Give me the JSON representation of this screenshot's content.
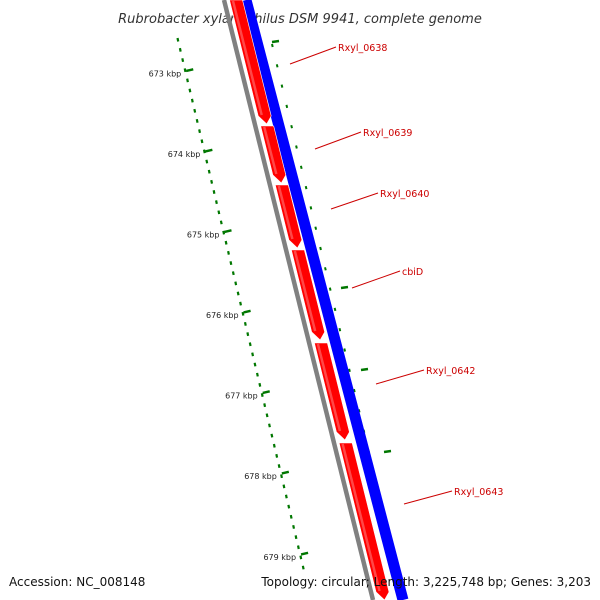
{
  "title": "Rubrobacter xylanophilus DSM 9941, complete genome",
  "footer": {
    "accession": "Accession: NC_008148",
    "summary": "Topology: circular; Length: 3,225,748 bp; Genes: 3,203"
  },
  "colors": {
    "forward_strand": "#ff0000",
    "reverse_strand": "#0000ff",
    "backbone": "#808080",
    "ticks": "#007700",
    "gene_labels": "#cc0000"
  },
  "map": {
    "tick_labels": [
      "673 kbp",
      "674 kbp",
      "675 kbp",
      "676 kbp",
      "677 kbp",
      "678 kbp",
      "679 kbp"
    ],
    "genes": [
      "Rxyl_0638",
      "Rxyl_0639",
      "Rxyl_0640",
      "cbiD",
      "Rxyl_0642",
      "Rxyl_0643"
    ]
  }
}
